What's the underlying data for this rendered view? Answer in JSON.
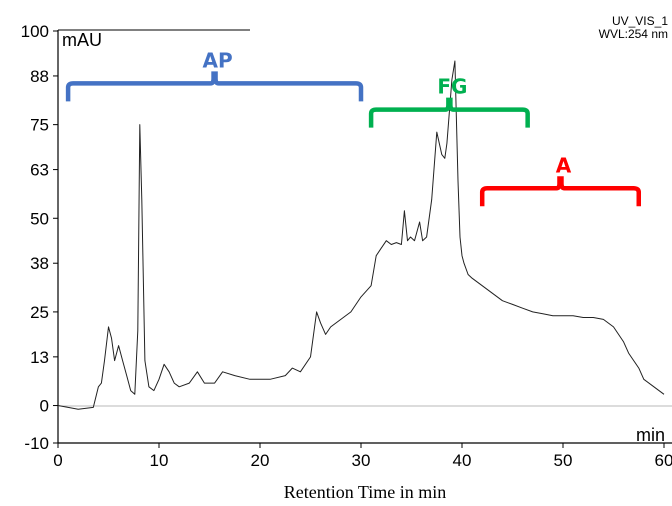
{
  "chart_data": {
    "type": "line",
    "xlabel": "Retention Time in min",
    "y_unit": "mAU",
    "x_unit": "min",
    "trace_name": "UV_VIS_1",
    "wavelength": "WVL:254 nm",
    "xlim": [
      0,
      60
    ],
    "ylim": [
      -10,
      100
    ],
    "x_ticks": [
      "0",
      "10",
      "20",
      "30",
      "40",
      "50",
      "60"
    ],
    "y_ticks": [
      "100",
      "88",
      "75",
      "63",
      "50",
      "38",
      "25",
      "13",
      "0",
      "-10"
    ],
    "y_tick_values": [
      100,
      88,
      75,
      63,
      50,
      38,
      25,
      13,
      0,
      -10
    ],
    "x_tick_values": [
      0,
      10,
      20,
      30,
      40,
      50,
      60
    ],
    "series": [
      {
        "x": [
          0,
          2,
          3.5,
          4,
          4.3,
          4.6,
          5,
          5.3,
          5.6,
          6,
          6.4,
          6.8,
          7.2,
          7.6,
          7.9,
          8.1,
          8.3,
          8.6,
          9,
          9.5,
          10,
          10.5,
          11,
          11.5,
          12,
          13,
          13.8,
          14.5,
          15.5,
          16.3,
          17.5,
          19,
          21,
          22.5,
          23.2,
          24,
          25,
          25.6,
          26,
          26.5,
          27,
          28,
          29,
          30,
          31,
          31.5,
          32,
          32.5,
          33,
          33.5,
          34,
          34.3,
          34.6,
          34.9,
          35.3,
          35.8,
          36.1,
          36.5,
          37,
          37.5,
          38,
          38.3,
          38.5,
          39,
          39.3,
          39.6,
          39.8,
          40,
          40.2,
          40.6,
          41,
          42,
          43,
          44,
          45,
          46,
          47,
          48,
          49,
          50,
          51,
          52,
          53,
          54,
          55,
          56,
          56.5,
          57,
          57.5,
          58,
          59,
          60
        ],
        "y": [
          0,
          -1,
          -0.5,
          5,
          6,
          12,
          21,
          18,
          12,
          16,
          12,
          8,
          4,
          3,
          20,
          75,
          55,
          12,
          5,
          4,
          7,
          11,
          9,
          6,
          5,
          6,
          9,
          6,
          6,
          9,
          8,
          7,
          7,
          8,
          10,
          9,
          13,
          25,
          22,
          19,
          21,
          23,
          25,
          29,
          32,
          40,
          42,
          44,
          43,
          43.5,
          43,
          52,
          44,
          45,
          44,
          49,
          44,
          45,
          55,
          73,
          67,
          66,
          70,
          87,
          92,
          60,
          45,
          40,
          38,
          35,
          34,
          32,
          30,
          28,
          27,
          26,
          25,
          24.5,
          24,
          24,
          24,
          23.5,
          23.5,
          23,
          21,
          17,
          14,
          12,
          10,
          7,
          5,
          3
        ]
      }
    ],
    "groups": [
      {
        "label": "AP",
        "color": "#4472C4",
        "x_start": 1,
        "x_end": 30,
        "y_level": 86
      },
      {
        "label": "FG",
        "color": "#00B050",
        "x_start": 31,
        "x_end": 46.5,
        "y_level": 79
      },
      {
        "label": "A",
        "color": "#FF0000",
        "x_start": 42,
        "x_end": 57.5,
        "y_level": 58
      }
    ]
  }
}
